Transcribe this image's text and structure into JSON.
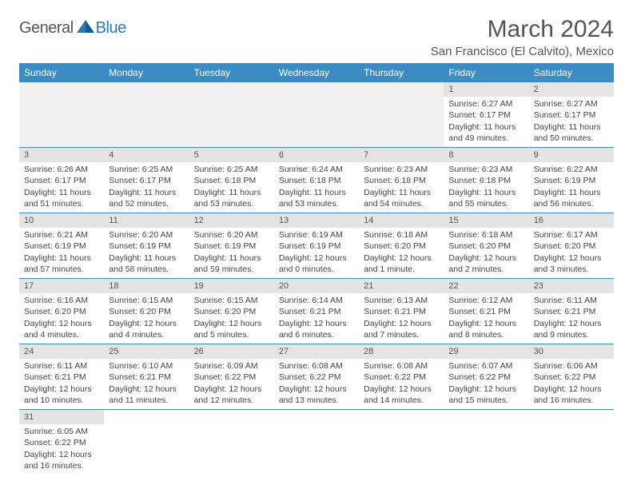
{
  "brand": {
    "part1": "General",
    "part2": "Blue"
  },
  "title": "March 2024",
  "location": "San Francisco (El Calvito), Mexico",
  "colors": {
    "header_bg": "#3b8bc5",
    "header_text": "#ffffff",
    "daynum_bg": "#e4e4e4",
    "body_text": "#444444",
    "rule": "#3b8bc5",
    "brand_blue": "#2a7ab8"
  },
  "day_names": [
    "Sunday",
    "Monday",
    "Tuesday",
    "Wednesday",
    "Thursday",
    "Friday",
    "Saturday"
  ],
  "weeks": [
    [
      null,
      null,
      null,
      null,
      null,
      {
        "n": "1",
        "sr": "6:27 AM",
        "ss": "6:17 PM",
        "dl": "11 hours and 49 minutes."
      },
      {
        "n": "2",
        "sr": "6:27 AM",
        "ss": "6:17 PM",
        "dl": "11 hours and 50 minutes."
      }
    ],
    [
      {
        "n": "3",
        "sr": "6:26 AM",
        "ss": "6:17 PM",
        "dl": "11 hours and 51 minutes."
      },
      {
        "n": "4",
        "sr": "6:25 AM",
        "ss": "6:17 PM",
        "dl": "11 hours and 52 minutes."
      },
      {
        "n": "5",
        "sr": "6:25 AM",
        "ss": "6:18 PM",
        "dl": "11 hours and 53 minutes."
      },
      {
        "n": "6",
        "sr": "6:24 AM",
        "ss": "6:18 PM",
        "dl": "11 hours and 53 minutes."
      },
      {
        "n": "7",
        "sr": "6:23 AM",
        "ss": "6:18 PM",
        "dl": "11 hours and 54 minutes."
      },
      {
        "n": "8",
        "sr": "6:23 AM",
        "ss": "6:18 PM",
        "dl": "11 hours and 55 minutes."
      },
      {
        "n": "9",
        "sr": "6:22 AM",
        "ss": "6:19 PM",
        "dl": "11 hours and 56 minutes."
      }
    ],
    [
      {
        "n": "10",
        "sr": "6:21 AM",
        "ss": "6:19 PM",
        "dl": "11 hours and 57 minutes."
      },
      {
        "n": "11",
        "sr": "6:20 AM",
        "ss": "6:19 PM",
        "dl": "11 hours and 58 minutes."
      },
      {
        "n": "12",
        "sr": "6:20 AM",
        "ss": "6:19 PM",
        "dl": "11 hours and 59 minutes."
      },
      {
        "n": "13",
        "sr": "6:19 AM",
        "ss": "6:19 PM",
        "dl": "12 hours and 0 minutes."
      },
      {
        "n": "14",
        "sr": "6:18 AM",
        "ss": "6:20 PM",
        "dl": "12 hours and 1 minute."
      },
      {
        "n": "15",
        "sr": "6:18 AM",
        "ss": "6:20 PM",
        "dl": "12 hours and 2 minutes."
      },
      {
        "n": "16",
        "sr": "6:17 AM",
        "ss": "6:20 PM",
        "dl": "12 hours and 3 minutes."
      }
    ],
    [
      {
        "n": "17",
        "sr": "6:16 AM",
        "ss": "6:20 PM",
        "dl": "12 hours and 4 minutes."
      },
      {
        "n": "18",
        "sr": "6:15 AM",
        "ss": "6:20 PM",
        "dl": "12 hours and 4 minutes."
      },
      {
        "n": "19",
        "sr": "6:15 AM",
        "ss": "6:20 PM",
        "dl": "12 hours and 5 minutes."
      },
      {
        "n": "20",
        "sr": "6:14 AM",
        "ss": "6:21 PM",
        "dl": "12 hours and 6 minutes."
      },
      {
        "n": "21",
        "sr": "6:13 AM",
        "ss": "6:21 PM",
        "dl": "12 hours and 7 minutes."
      },
      {
        "n": "22",
        "sr": "6:12 AM",
        "ss": "6:21 PM",
        "dl": "12 hours and 8 minutes."
      },
      {
        "n": "23",
        "sr": "6:11 AM",
        "ss": "6:21 PM",
        "dl": "12 hours and 9 minutes."
      }
    ],
    [
      {
        "n": "24",
        "sr": "6:11 AM",
        "ss": "6:21 PM",
        "dl": "12 hours and 10 minutes."
      },
      {
        "n": "25",
        "sr": "6:10 AM",
        "ss": "6:21 PM",
        "dl": "12 hours and 11 minutes."
      },
      {
        "n": "26",
        "sr": "6:09 AM",
        "ss": "6:22 PM",
        "dl": "12 hours and 12 minutes."
      },
      {
        "n": "27",
        "sr": "6:08 AM",
        "ss": "6:22 PM",
        "dl": "12 hours and 13 minutes."
      },
      {
        "n": "28",
        "sr": "6:08 AM",
        "ss": "6:22 PM",
        "dl": "12 hours and 14 minutes."
      },
      {
        "n": "29",
        "sr": "6:07 AM",
        "ss": "6:22 PM",
        "dl": "12 hours and 15 minutes."
      },
      {
        "n": "30",
        "sr": "6:06 AM",
        "ss": "6:22 PM",
        "dl": "12 hours and 16 minutes."
      }
    ],
    [
      {
        "n": "31",
        "sr": "6:05 AM",
        "ss": "6:22 PM",
        "dl": "12 hours and 16 minutes."
      },
      null,
      null,
      null,
      null,
      null,
      null
    ]
  ],
  "labels": {
    "sunrise": "Sunrise:",
    "sunset": "Sunset:",
    "daylight": "Daylight:"
  }
}
